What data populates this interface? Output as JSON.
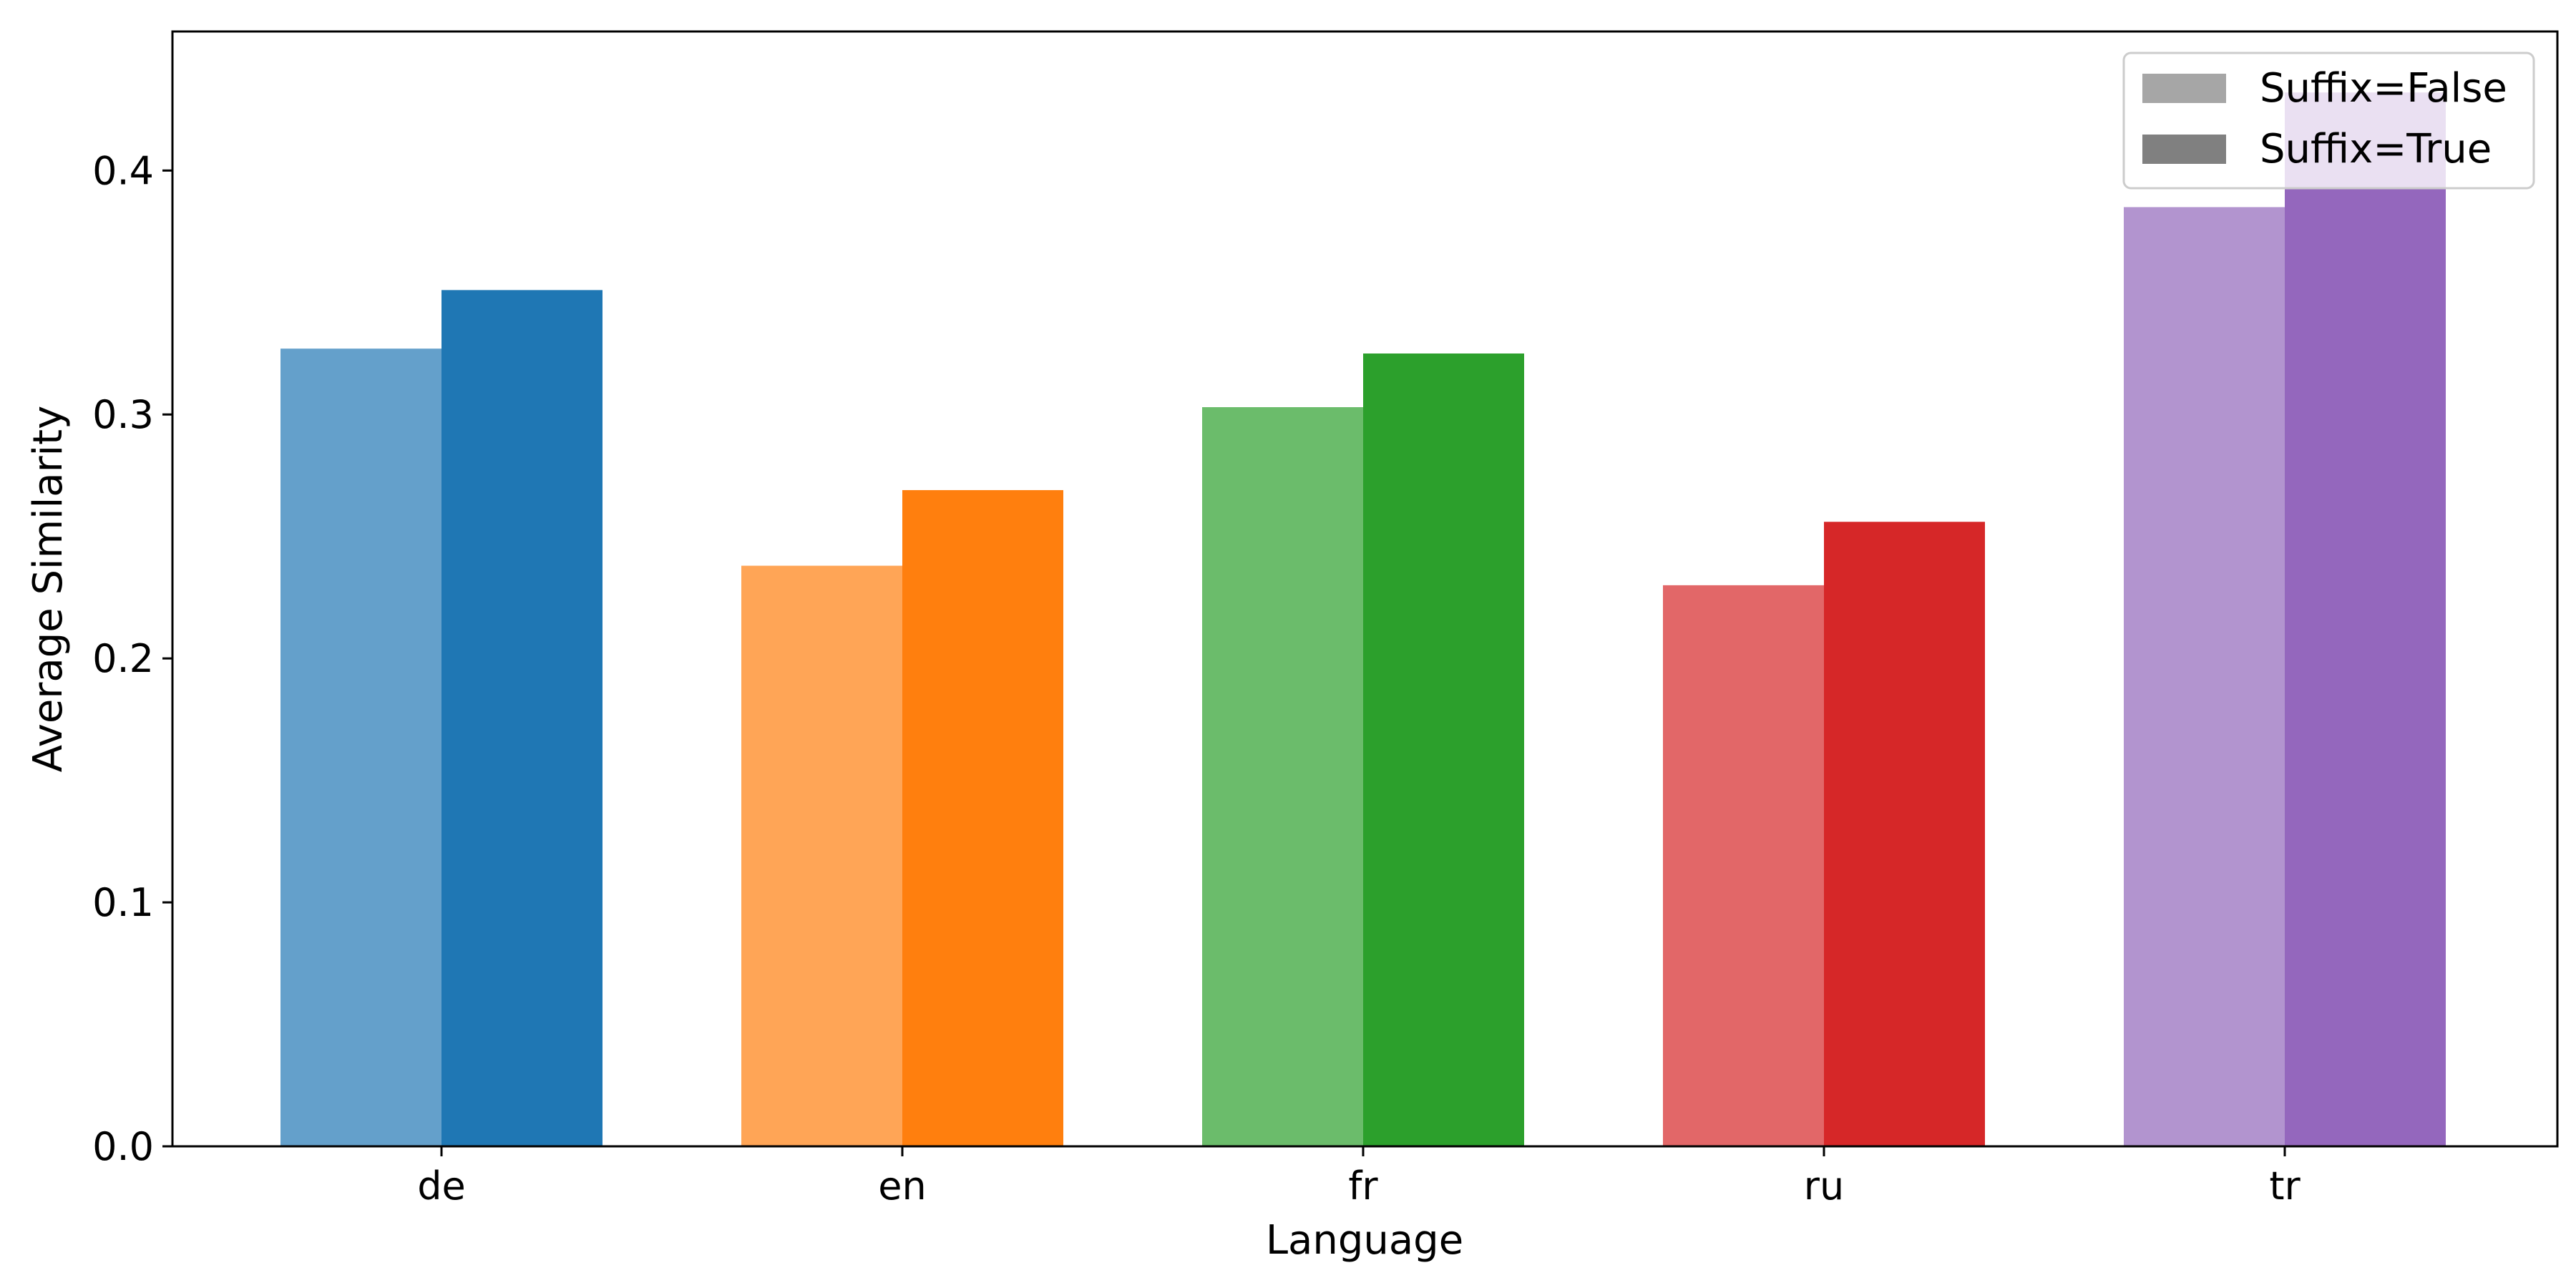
{
  "chart_data": {
    "type": "bar",
    "categories": [
      "de",
      "en",
      "fr",
      "ru",
      "tr"
    ],
    "series": [
      {
        "name": "Suffix=False",
        "values": [
          0.327,
          0.238,
          0.303,
          0.23,
          0.385
        ]
      },
      {
        "name": "Suffix=True",
        "values": [
          0.351,
          0.269,
          0.325,
          0.256,
          0.432
        ]
      }
    ],
    "category_colors": {
      "de": {
        "false": "#64a0cb",
        "true": "#1f77b4"
      },
      "en": {
        "false": "#ffa556",
        "true": "#ff7f0e"
      },
      "fr": {
        "false": "#6bbc6b",
        "true": "#2ca02c"
      },
      "ru": {
        "false": "#e26768",
        "true": "#d62728"
      },
      "tr": {
        "false": "#b294cf",
        "true": "#9467bd"
      }
    },
    "legend": {
      "placement": "top-right",
      "items": [
        {
          "label": "Suffix=False",
          "color": "#a6a6a6"
        },
        {
          "label": "Suffix=True",
          "color": "#808080"
        }
      ]
    },
    "title": "",
    "xlabel": "Language",
    "ylabel": "Average Similarity",
    "ylim": [
      0,
      0.457
    ],
    "yticks": [
      0.0,
      0.1,
      0.2,
      0.3,
      0.4
    ],
    "ytick_labels": [
      "0.0",
      "0.1",
      "0.2",
      "0.3",
      "0.4"
    ],
    "grid": false
  }
}
